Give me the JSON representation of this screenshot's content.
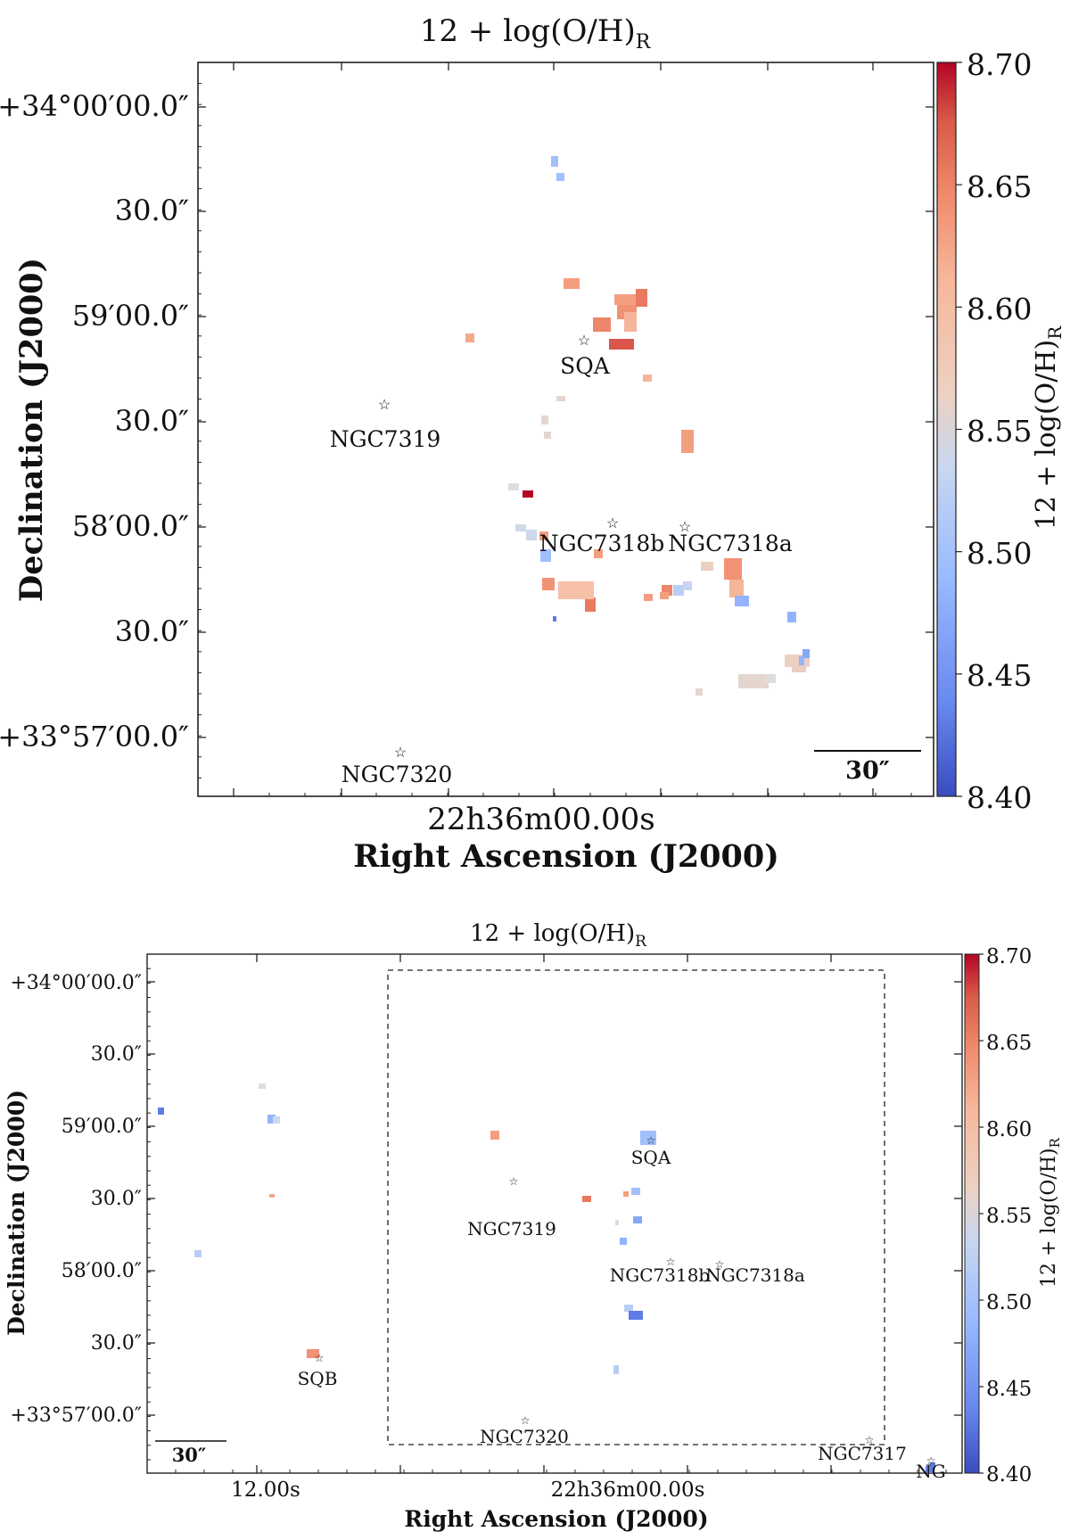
{
  "chart_data": [
    {
      "type": "heatmap",
      "title": "12 + log(O/H)",
      "title_subscript": "R",
      "xlabel": "Right Ascension (J2000)",
      "ylabel": "Declination (J2000)",
      "x_ticks": [
        "22h36m00.00s"
      ],
      "y_ticks": [
        "+34°00′00.0″",
        "30.0″",
        "59′00.0″",
        "30.0″",
        "58′00.0″",
        "30.0″",
        "+33°57′00.0″"
      ],
      "colorbar": {
        "label": "12 + log(O/H)",
        "label_subscript": "R",
        "min": 8.4,
        "max": 8.7,
        "ticks": [
          "8.70",
          "8.65",
          "8.60",
          "8.55",
          "8.50",
          "8.45",
          "8.40"
        ],
        "colormap": [
          "#3b4cc0",
          "#6788ee",
          "#9abbff",
          "#c9d7f0",
          "#dddddd",
          "#f6c3aa",
          "#f4987a",
          "#e36a53",
          "#b40426"
        ]
      },
      "scalebar": "30″",
      "labels": [
        "SQA",
        "NGC7319",
        "NGC7318b",
        "NGC7318a",
        "NGC7320"
      ],
      "regions_values": [
        8.48,
        8.48,
        8.62,
        8.62,
        8.63,
        8.65,
        8.6,
        8.64,
        8.67,
        8.6,
        8.61,
        8.56,
        8.56,
        8.62,
        8.56,
        8.62,
        8.55,
        8.7,
        8.53,
        8.52,
        8.48,
        8.62,
        8.62,
        8.63,
        8.57,
        8.63,
        8.6,
        8.64,
        8.65,
        8.43,
        8.5,
        8.51,
        8.62,
        8.62,
        8.47,
        8.59,
        8.57,
        8.57,
        8.47,
        8.46,
        8.47,
        8.56,
        8.56,
        8.56,
        8.55
      ]
    },
    {
      "type": "heatmap",
      "title": "12 + log(O/H)",
      "title_subscript": "R",
      "xlabel": "Right Ascension (J2000)",
      "ylabel": "Declination (J2000)",
      "x_ticks": [
        "12.00s",
        "22h36m00.00s"
      ],
      "y_ticks": [
        "+34°00′00.0″",
        "30.0″",
        "59′00.0″",
        "30.0″",
        "58′00.0″",
        "30.0″",
        "+33°57′00.0″"
      ],
      "colorbar": {
        "label": "12 + log(O/H)",
        "label_subscript": "R",
        "min": 8.4,
        "max": 8.7,
        "ticks": [
          "8.70",
          "8.65",
          "8.60",
          "8.55",
          "8.50",
          "8.45",
          "8.40"
        ]
      },
      "scalebar": "30″",
      "labels": [
        "SQA",
        "NGC7319",
        "NGC7318b",
        "NGC7318a",
        "SQB",
        "NGC7320",
        "NGC7317",
        "NG"
      ],
      "regions_values": [
        8.43,
        8.55,
        8.47,
        8.52,
        8.62,
        8.5,
        8.63,
        8.65,
        8.48,
        8.48,
        8.62,
        8.47,
        8.55,
        8.46,
        8.5,
        8.43,
        8.61,
        8.43,
        8.5,
        8.43
      ]
    }
  ]
}
